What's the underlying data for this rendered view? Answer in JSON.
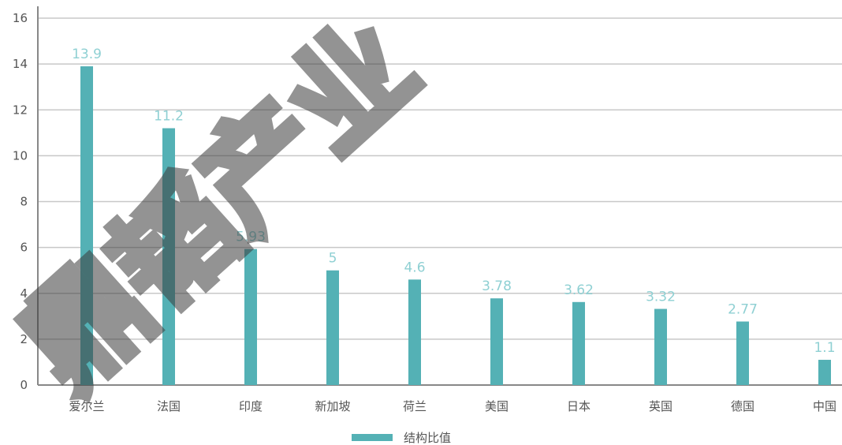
{
  "chart_data": {
    "type": "bar",
    "categories": [
      "爱尔兰",
      "法国",
      "印度",
      "新加坡",
      "荷兰",
      "美国",
      "日本",
      "英国",
      "德国",
      "中国"
    ],
    "series": [
      {
        "name": "结构比值",
        "values": [
          13.9,
          11.2,
          5.93,
          5,
          4.6,
          3.78,
          3.62,
          3.32,
          2.77,
          1.1
        ],
        "labels": [
          "13.9",
          "11.2",
          "5.93",
          "5",
          "4.6",
          "3.78",
          "3.62",
          "3.32",
          "2.77",
          "1.1"
        ]
      }
    ],
    "y_ticks": [
      "0",
      "2",
      "4",
      "6",
      "8",
      "10",
      "12",
      "14",
      "16"
    ],
    "ylim": [
      0,
      16
    ],
    "grid": true,
    "legend_position": "bottom-center",
    "title": "",
    "xlabel": "",
    "ylabel": ""
  },
  "watermark": {
    "text": "鼎韬产业"
  },
  "colors": {
    "bar": "#54b1b5",
    "data_label": "#8fd0d3",
    "grid": "#c8c8c8",
    "axis": "#888888",
    "text": "#555555",
    "watermark": "#3a3a3a"
  }
}
